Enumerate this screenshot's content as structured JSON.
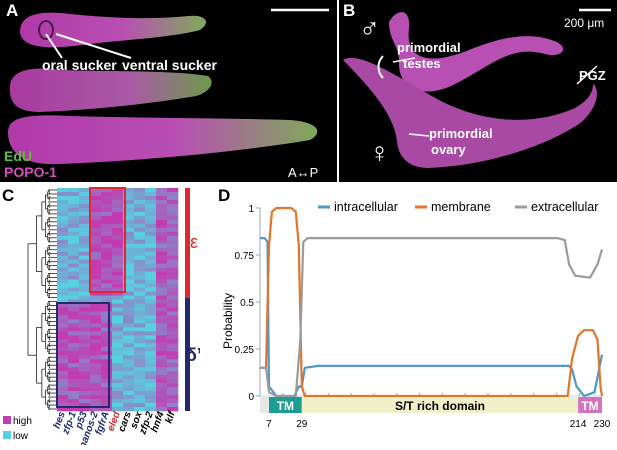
{
  "panel_labels": {
    "a": "A",
    "b": "B",
    "c": "C",
    "d": "D"
  },
  "panel_a": {
    "labels": {
      "oral": "oral sucker",
      "ventral": "ventral sucker"
    },
    "legend": {
      "edu": "EdU",
      "popo": "POPO-1"
    },
    "axis": "A↔P",
    "colors": {
      "edu": "#5dbf3b",
      "popo": "#d44fbf"
    }
  },
  "panel_b": {
    "scalebar": "200 μm",
    "male_symbol": "♂",
    "female_symbol": "♀",
    "labels": {
      "testes_1": "primordial",
      "testes_2": "testes",
      "pgz": "PGZ",
      "ovary_1": "primordial",
      "ovary_2": "ovary"
    }
  },
  "panel_c": {
    "genes": [
      "hes",
      "zfp-1",
      "p53",
      "nanos-2",
      "fgfrA",
      "eled",
      "cars",
      "sox",
      "zfp-2",
      "hnf4",
      "klf"
    ],
    "gene_colors": {
      "hes": "#1f2a6b",
      "zfp-1": "#1f2a6b",
      "p53": "#1f2a6b",
      "nanos-2": "#1f2a6b",
      "fgfrA": "#1f2a6b",
      "eled": "#cf2f2f",
      "cars": "#000000",
      "sox": "#000000",
      "zfp-2": "#000000",
      "hnf4": "#000000",
      "klf": "#000000"
    },
    "legend": {
      "high": "high",
      "low": "low"
    },
    "groups": {
      "epsilon": "ε",
      "delta": "δ’"
    },
    "colors": {
      "high": "#c23bb0",
      "low": "#57d0e0",
      "epsilon": "#e0282a",
      "delta": "#24286b"
    }
  },
  "chart_data": {
    "type": "line",
    "title": "",
    "xlabel": "",
    "ylabel": "Probability",
    "ylim": [
      0,
      1
    ],
    "yticks": [
      "0",
      "0.25",
      "0.5",
      "0.75",
      "1"
    ],
    "x_tick_labels": [
      "7",
      "29",
      "214",
      "230"
    ],
    "x_tick_values": [
      7,
      29,
      214,
      230
    ],
    "xlim": [
      1,
      230
    ],
    "series": [
      {
        "name": "intracellular",
        "color": "#4e97c9",
        "points": [
          [
            1,
            0.84
          ],
          [
            4,
            0.84
          ],
          [
            6,
            0.82
          ],
          [
            7,
            0.05
          ],
          [
            12,
            0.0
          ],
          [
            24,
            0.0
          ],
          [
            27,
            0.05
          ],
          [
            29,
            0.05
          ],
          [
            31,
            0.15
          ],
          [
            40,
            0.16
          ],
          [
            150,
            0.16
          ],
          [
            208,
            0.16
          ],
          [
            210,
            0.14
          ],
          [
            213,
            0.05
          ],
          [
            218,
            0.0
          ],
          [
            225,
            0.02
          ],
          [
            229,
            0.18
          ],
          [
            230,
            0.22
          ]
        ]
      },
      {
        "name": "membrane",
        "color": "#e2752a",
        "points": [
          [
            1,
            0.15
          ],
          [
            5,
            0.15
          ],
          [
            7,
            0.8
          ],
          [
            9,
            0.98
          ],
          [
            12,
            1.0
          ],
          [
            22,
            1.0
          ],
          [
            25,
            0.98
          ],
          [
            27,
            0.8
          ],
          [
            29,
            0.05
          ],
          [
            31,
            0.0
          ],
          [
            200,
            0.0
          ],
          [
            207,
            0.0
          ],
          [
            210,
            0.2
          ],
          [
            214,
            0.32
          ],
          [
            218,
            0.35
          ],
          [
            224,
            0.35
          ],
          [
            227,
            0.3
          ],
          [
            229,
            0.05
          ],
          [
            230,
            0.0
          ]
        ]
      },
      {
        "name": "extracellular",
        "color": "#9b9b9b",
        "points": [
          [
            1,
            0.15
          ],
          [
            5,
            0.15
          ],
          [
            7,
            0.02
          ],
          [
            12,
            0.0
          ],
          [
            25,
            0.0
          ],
          [
            28,
            0.3
          ],
          [
            30,
            0.82
          ],
          [
            33,
            0.84
          ],
          [
            200,
            0.84
          ],
          [
            205,
            0.83
          ],
          [
            208,
            0.7
          ],
          [
            212,
            0.64
          ],
          [
            222,
            0.63
          ],
          [
            227,
            0.7
          ],
          [
            230,
            0.78
          ]
        ]
      }
    ],
    "domains": [
      {
        "label": "TM",
        "start": 7,
        "end": 29,
        "color": "#1c9d94",
        "text_color": "#ffffff"
      },
      {
        "label": "S/T rich domain",
        "start": 29,
        "end": 214,
        "color": "#f2f0c8",
        "text_color": "#000000"
      },
      {
        "label": "TM",
        "start": 214,
        "end": 230,
        "color": "#d273bc",
        "text_color": "#ffffff"
      }
    ]
  }
}
